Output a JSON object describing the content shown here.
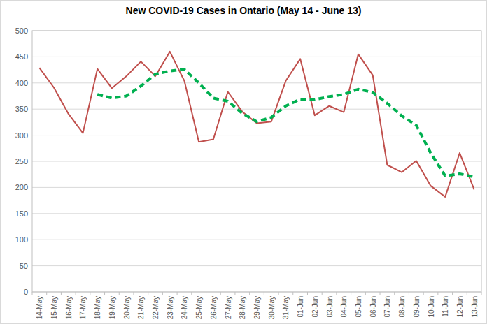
{
  "chart_data": {
    "type": "line",
    "title": "New COVID-19 Cases in Ontario (May 14 - June 13)",
    "categories": [
      "14-May",
      "15-May",
      "16-May",
      "17-May",
      "18-May",
      "19-May",
      "20-May",
      "21-May",
      "22-May",
      "23-May",
      "24-May",
      "25-May",
      "26-May",
      "27-May",
      "28-May",
      "29-May",
      "30-May",
      "31-May",
      "01-Jun",
      "02-Jun",
      "03-Jun",
      "04-Jun",
      "05-Jun",
      "06-Jun",
      "07-Jun",
      "08-Jun",
      "09-Jun",
      "10-Jun",
      "11-Jun",
      "12-Jun",
      "13-Jun"
    ],
    "series": [
      {
        "color": "#c0504d",
        "line_style": "solid",
        "values": [
          429,
          391,
          341,
          304,
          427,
          390,
          413,
          441,
          413,
          460,
          404,
          287,
          292,
          383,
          345,
          323,
          326,
          404,
          446,
          338,
          356,
          344,
          455,
          415,
          243,
          229,
          251,
          203,
          182,
          266,
          196
        ]
      },
      {
        "color": "#00b050",
        "line_style": "dashed",
        "values": [
          null,
          null,
          null,
          null,
          378,
          371,
          375,
          394,
          417,
          423,
          426,
          400,
          371,
          365,
          342,
          326,
          334,
          356,
          369,
          368,
          374,
          378,
          388,
          382,
          361,
          337,
          319,
          266,
          222,
          226,
          220
        ]
      }
    ],
    "ylim": [
      0,
      500
    ],
    "yticks": [
      0,
      50,
      100,
      150,
      200,
      250,
      300,
      350,
      400,
      450,
      500
    ],
    "grid": true
  }
}
